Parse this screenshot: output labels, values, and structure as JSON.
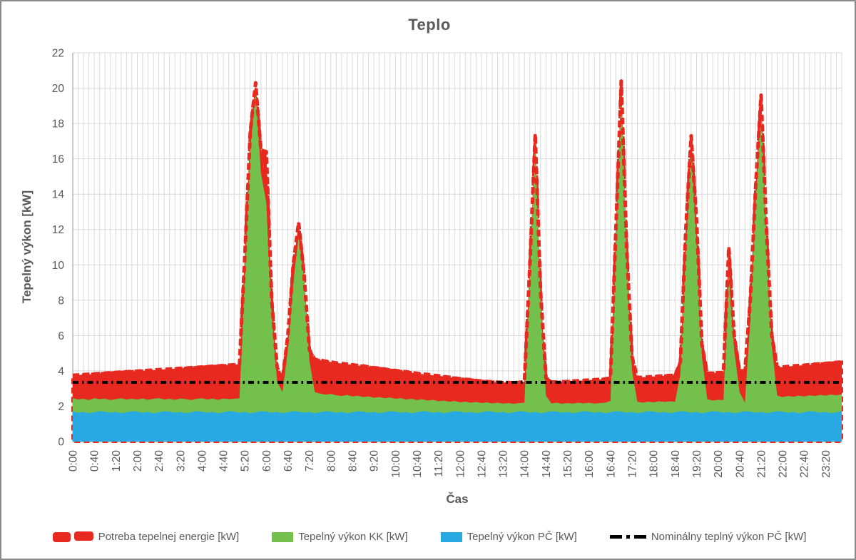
{
  "title": "Teplo",
  "y_axis": {
    "title": "Tepelný výkon [kW]",
    "min": 0,
    "max": 22,
    "tick_step": 2,
    "ticks": [
      0,
      2,
      4,
      6,
      8,
      10,
      12,
      14,
      16,
      18,
      20,
      22
    ]
  },
  "x_axis": {
    "title": "Čas",
    "label_every_n_points": 4,
    "labels": [
      "0:00",
      "0:40",
      "1:20",
      "2:00",
      "2:40",
      "3:20",
      "4:00",
      "4:40",
      "5:20",
      "6:00",
      "6:40",
      "7:20",
      "8:00",
      "8:40",
      "9:20",
      "10:00",
      "10:40",
      "11:20",
      "12:00",
      "12:40",
      "13:20",
      "14:00",
      "14:40",
      "15:20",
      "16:00",
      "16:40",
      "17:20",
      "18:00",
      "18:40",
      "19:20",
      "20:00",
      "20:40",
      "21:20",
      "22:00",
      "22:40",
      "23:20"
    ]
  },
  "legend": [
    {
      "label": "Potreba tepelnej energie [kW]",
      "marker": "thick-dashed-line",
      "color": "#e8291f"
    },
    {
      "label": "Tepelný výkon KK [kW]",
      "marker": "rect",
      "color": "#74c04c"
    },
    {
      "label": "Tepelný výkon PČ [kW]",
      "marker": "rect",
      "color": "#29a9e1"
    },
    {
      "label": "Nominálny teplný výkon PČ [kW]",
      "marker": "dash-dot-line",
      "color": "#000000"
    }
  ],
  "chart_data": {
    "type": "area",
    "title": "Teplo",
    "xlabel": "Čas",
    "ylabel": "Tepelný výkon [kW]",
    "ylim": [
      0,
      22
    ],
    "x_start": "0:00",
    "x_step_minutes": 10,
    "point_count": 144,
    "stacking_note": "PČ is the base stacked area, KK is stacked on top of PČ; demand is an absolute total drawn as a thick dashed red line with red fill between the KK stack top and the demand",
    "series": [
      {
        "name": "Potreba tepelnej energie [kW]",
        "type": "line-with-area",
        "style": "thick-dashed",
        "color": "#e8291f",
        "values": [
          3.75,
          3.77,
          3.79,
          3.81,
          3.83,
          3.85,
          3.87,
          3.89,
          3.91,
          3.93,
          3.95,
          3.97,
          3.99,
          4.01,
          4.03,
          4.05,
          4.07,
          4.09,
          4.1,
          4.12,
          4.14,
          4.16,
          4.18,
          4.2,
          4.22,
          4.24,
          4.26,
          4.28,
          4.3,
          4.32,
          4.35,
          4.38,
          10.5,
          17.5,
          20.3,
          16.5,
          16.4,
          8.0,
          4.2,
          3.5,
          6.0,
          10.0,
          12.4,
          9.5,
          5.2,
          4.65,
          4.6,
          4.55,
          4.5,
          4.45,
          4.42,
          4.38,
          4.35,
          4.3,
          4.28,
          4.22,
          4.18,
          4.15,
          4.1,
          4.05,
          4.02,
          3.98,
          3.95,
          3.9,
          3.86,
          3.82,
          3.8,
          3.75,
          3.72,
          3.68,
          3.64,
          3.6,
          3.56,
          3.52,
          3.5,
          3.46,
          3.42,
          3.4,
          3.38,
          3.36,
          3.35,
          3.34,
          3.33,
          3.35,
          3.4,
          10.0,
          17.4,
          8.5,
          3.6,
          3.38,
          3.36,
          3.38,
          3.4,
          3.42,
          3.44,
          3.46,
          3.48,
          3.5,
          3.52,
          3.55,
          3.6,
          12.0,
          20.4,
          11.0,
          4.8,
          3.62,
          3.64,
          3.66,
          3.68,
          3.7,
          3.72,
          3.74,
          3.75,
          4.5,
          12.0,
          17.3,
          12.5,
          5.5,
          3.85,
          3.88,
          3.9,
          3.9,
          11.0,
          6.0,
          4.0,
          4.0,
          8.0,
          14.5,
          19.6,
          12.0,
          6.0,
          4.2,
          4.22,
          4.25,
          4.28,
          4.3,
          4.32,
          4.35,
          4.38,
          4.4,
          4.42,
          4.45,
          4.48,
          4.5
        ]
      },
      {
        "name": "Tepelný výkon KK [kW]",
        "type": "area-stacked",
        "color": "#74c04c",
        "values": [
          0.75,
          0.75,
          0.74,
          0.75,
          0.79,
          0.68,
          0.72,
          0.72,
          0.72,
          0.85,
          0.72,
          0.7,
          0.68,
          0.81,
          0.68,
          0.82,
          0.8,
          0.66,
          0.72,
          0.73,
          0.76,
          0.8,
          0.69,
          0.7,
          0.75,
          0.75,
          0.75,
          0.76,
          0.78,
          0.68,
          0.72,
          0.82,
          7.82,
          14.9,
          18.24,
          13.48,
          11.8,
          5.57,
          1.72,
          1.2,
          3.54,
          7.28,
          9.9,
          7.67,
          2.92,
          1.2,
          1.06,
          0.94,
          1.0,
          0.99,
          0.9,
          1.04,
          0.89,
          0.88,
          0.82,
          0.93,
          0.8,
          0.92,
          0.79,
          0.78,
          0.72,
          0.83,
          0.7,
          0.82,
          0.69,
          0.68,
          0.62,
          0.73,
          0.6,
          0.72,
          0.59,
          0.58,
          0.52,
          0.63,
          0.52,
          0.64,
          0.52,
          0.5,
          0.46,
          0.57,
          0.47,
          0.58,
          0.48,
          0.46,
          0.5,
          7.57,
          15.22,
          6.4,
          0.94,
          0.44,
          0.5,
          0.51,
          0.5,
          0.55,
          0.54,
          0.44,
          0.5,
          0.52,
          0.5,
          0.6,
          0.64,
          9.08,
          18.2,
          8.77,
          2.32,
          0.65,
          0.54,
          0.54,
          0.52,
          0.65,
          0.56,
          0.68,
          0.59,
          2.08,
          9.1,
          15.17,
          9.52,
          3.2,
          0.74,
          0.6,
          0.66,
          0.72,
          8.02,
          3.6,
          1.14,
          0.48,
          5.3,
          11.97,
          17.22,
          9.8,
          3.74,
          0.88,
          0.82,
          0.95,
          0.86,
          1.0,
          0.89,
          0.9,
          0.88,
          1.01,
          0.92,
          1.06,
          0.96,
          0.96
        ]
      },
      {
        "name": "Tepelný výkon PČ [kW]",
        "type": "area-stacked-base",
        "color": "#29a9e1",
        "values": [
          1.7,
          1.63,
          1.68,
          1.6,
          1.66,
          1.72,
          1.7,
          1.63,
          1.68,
          1.6,
          1.66,
          1.72,
          1.7,
          1.63,
          1.68,
          1.6,
          1.66,
          1.72,
          1.7,
          1.63,
          1.68,
          1.6,
          1.66,
          1.72,
          1.7,
          1.63,
          1.68,
          1.6,
          1.66,
          1.72,
          1.7,
          1.63,
          1.68,
          1.6,
          1.66,
          1.72,
          1.7,
          1.63,
          1.68,
          1.6,
          1.66,
          1.72,
          1.7,
          1.63,
          1.68,
          1.6,
          1.66,
          1.72,
          1.7,
          1.63,
          1.68,
          1.6,
          1.66,
          1.72,
          1.7,
          1.63,
          1.68,
          1.6,
          1.66,
          1.72,
          1.7,
          1.63,
          1.68,
          1.6,
          1.66,
          1.72,
          1.7,
          1.63,
          1.68,
          1.6,
          1.66,
          1.72,
          1.7,
          1.63,
          1.68,
          1.6,
          1.66,
          1.72,
          1.7,
          1.63,
          1.68,
          1.6,
          1.66,
          1.72,
          1.7,
          1.63,
          1.68,
          1.6,
          1.66,
          1.72,
          1.7,
          1.63,
          1.68,
          1.6,
          1.66,
          1.72,
          1.7,
          1.63,
          1.68,
          1.6,
          1.66,
          1.72,
          1.7,
          1.63,
          1.68,
          1.6,
          1.66,
          1.72,
          1.7,
          1.63,
          1.68,
          1.6,
          1.66,
          1.72,
          1.7,
          1.63,
          1.68,
          1.6,
          1.66,
          1.72,
          1.7,
          1.63,
          1.68,
          1.6,
          1.66,
          1.72,
          1.7,
          1.63,
          1.68,
          1.6,
          1.66,
          1.72,
          1.7,
          1.63,
          1.68,
          1.6,
          1.66,
          1.72,
          1.7,
          1.63,
          1.68,
          1.6,
          1.66,
          1.72
        ]
      },
      {
        "name": "Nominálny teplný výkon PČ [kW]",
        "type": "horizontal-line",
        "style": "dash-dot",
        "color": "#000000",
        "value": 3.35
      }
    ],
    "layout": {
      "grid": true,
      "grid_color": "#d9d9d9",
      "axis_line_color": "#a6a6a6",
      "axis_text_color": "#595959",
      "background": "#ffffff",
      "legend_position": "bottom"
    }
  }
}
